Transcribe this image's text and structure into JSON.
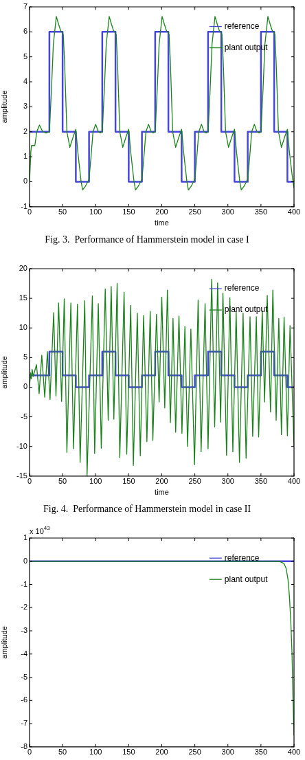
{
  "chart_data": [
    {
      "type": "line",
      "title": "Fig. 3.  Performance of Hammerstein model in case I",
      "xlabel": "time",
      "ylabel": "amplitude",
      "xlim": [
        0,
        400
      ],
      "xticks": [
        0,
        50,
        100,
        150,
        200,
        250,
        300,
        350,
        400
      ],
      "ylim": [
        -1,
        7
      ],
      "yticks": [
        -1,
        0,
        1,
        2,
        3,
        4,
        5,
        6,
        7
      ],
      "legend": "top right",
      "marker": "none",
      "series": [
        {
          "name": "reference",
          "type": "step",
          "color": "#4646dc",
          "x": [
            0,
            30,
            50,
            70,
            90,
            110,
            130,
            150,
            170,
            190,
            210,
            230,
            250,
            270,
            290,
            310,
            330,
            350,
            370,
            390,
            400
          ],
          "values": [
            2,
            6,
            2,
            0,
            2,
            6,
            2,
            0,
            2,
            6,
            2,
            0,
            2,
            6,
            2,
            0,
            2,
            6,
            2,
            0,
            0
          ]
        },
        {
          "name": "plant output",
          "type": "line",
          "color": "#1a821a",
          "x": [
            0,
            2,
            3,
            8,
            11,
            15,
            20,
            25,
            30,
            33,
            36,
            40.5,
            44,
            47,
            49,
            51,
            53,
            56.5,
            61,
            66,
            70,
            73,
            78,
            80.3,
            84,
            88,
            90,
            93,
            96,
            100,
            104,
            107,
            110,
            113,
            116,
            120.5,
            124,
            127,
            129,
            131,
            133,
            136.5,
            141,
            146,
            150,
            153,
            158,
            160.3,
            164,
            168,
            170,
            173,
            176,
            180,
            184,
            187,
            190,
            193,
            196,
            200.5,
            204,
            207,
            209,
            211,
            213,
            216.5,
            221,
            226,
            230,
            233,
            238,
            240.3,
            244,
            248,
            250,
            253,
            256,
            260,
            264,
            267,
            270,
            273,
            276,
            280.5,
            284,
            287,
            289,
            291,
            293,
            296.5,
            301,
            306,
            310,
            313,
            318,
            320.3,
            324,
            328,
            330,
            333,
            336,
            340,
            344,
            347,
            350,
            353,
            356,
            360.5,
            364,
            367,
            369,
            371,
            373,
            376.5,
            381,
            386,
            390,
            393,
            397,
            400
          ],
          "values": [
            0,
            1.2,
            1.45,
            1.45,
            2,
            2.27,
            2,
            1.95,
            2,
            3.6,
            5.5,
            6.62,
            6.3,
            6.05,
            6,
            5.9,
            4.8,
            2,
            1.38,
            1.8,
            2.1,
            1.2,
            0,
            -0.33,
            -0.2,
            0,
            0.1,
            1,
            2,
            2.3,
            2,
            1.95,
            2,
            3.6,
            5.5,
            6.62,
            6.3,
            6.05,
            6,
            5.9,
            4.8,
            2,
            1.38,
            1.8,
            2.1,
            1.2,
            0,
            -0.33,
            -0.2,
            0,
            0.1,
            1,
            2,
            2.3,
            2,
            1.95,
            2,
            3.6,
            5.5,
            6.62,
            6.3,
            6.05,
            6,
            5.9,
            4.8,
            2,
            1.38,
            1.8,
            2.1,
            1.2,
            0,
            -0.33,
            -0.2,
            0,
            0.1,
            1,
            2,
            2.3,
            2,
            1.95,
            2,
            3.6,
            5.5,
            6.62,
            6.3,
            6.05,
            6,
            5.9,
            4.8,
            2,
            1.38,
            1.8,
            2.1,
            1.2,
            0,
            -0.33,
            -0.2,
            0,
            0.1,
            1,
            2,
            2.3,
            2,
            1.95,
            2,
            3.6,
            5.5,
            6.62,
            6.3,
            6.05,
            6,
            5.9,
            4.8,
            2,
            1.38,
            1.8,
            2.1,
            1.2,
            0.3,
            -0.25
          ]
        }
      ]
    },
    {
      "type": "line",
      "title": "Fig. 4.  Performance of Hammerstein model in case II",
      "xlabel": "time",
      "ylabel": "amplitude",
      "xlim": [
        0,
        400
      ],
      "xticks": [
        0,
        50,
        100,
        150,
        200,
        250,
        300,
        350,
        400
      ],
      "ylim": [
        -15,
        20
      ],
      "yticks": [
        -15,
        -10,
        -5,
        0,
        5,
        10,
        15,
        20
      ],
      "legend": "top right",
      "marker": "none",
      "series": [
        {
          "name": "reference",
          "type": "step",
          "color": "#4646dc",
          "x": [
            0,
            30,
            50,
            70,
            90,
            110,
            130,
            150,
            170,
            190,
            210,
            230,
            250,
            270,
            290,
            310,
            330,
            350,
            370,
            390,
            400
          ],
          "values": [
            2,
            6,
            2,
            0,
            2,
            6,
            2,
            0,
            2,
            6,
            2,
            0,
            2,
            6,
            2,
            0,
            2,
            6,
            2,
            0,
            0
          ]
        },
        {
          "name": "plant output",
          "type": "line",
          "color": "#1a821a",
          "x": [
            0,
            1.5,
            2.5,
            4,
            5.5,
            7.5,
            10.5,
            14.5,
            18.5,
            23,
            27,
            31,
            36.5,
            40,
            44,
            48.5,
            52.5,
            56.5,
            62.5,
            66.5,
            72.5,
            76.5,
            83.5,
            87,
            95,
            98.5,
            104,
            108.5,
            114.5,
            119,
            123.5,
            127.5,
            132.5,
            136.5,
            143,
            147,
            153,
            157,
            163,
            167.5,
            172.5,
            177.5,
            182.5,
            186.5,
            192,
            196,
            200,
            204.5,
            208.5,
            213,
            217,
            221,
            226,
            230.5,
            235,
            239,
            244,
            249.5,
            255,
            259.5,
            265.5,
            270,
            275.5,
            280,
            284.5,
            289,
            292.5,
            298,
            303,
            307.5,
            312.5,
            317.5,
            323,
            327.5,
            333.5,
            337.5,
            343,
            346.5,
            352,
            355.5,
            359.5,
            364.5,
            368,
            373,
            377,
            381,
            385,
            390,
            394,
            400
          ],
          "values": [
            0,
            2.4,
            1.4,
            3,
            1.8,
            2.6,
            3.8,
            -1.1,
            5.4,
            -1.7,
            6,
            -2.1,
            12.6,
            -1.5,
            14.2,
            -2.4,
            14.9,
            -11,
            14.2,
            -10.4,
            14,
            -12.7,
            14.6,
            -14.9,
            15.4,
            -11.2,
            14.1,
            -10.3,
            16.6,
            -5.6,
            17,
            -5.4,
            17.5,
            -11.9,
            16,
            -11.3,
            13.8,
            -13.2,
            12.5,
            -11.6,
            12.1,
            -9.2,
            12.8,
            -9,
            12.3,
            -2.5,
            15.2,
            -3.5,
            16.4,
            -6,
            11.6,
            -7.6,
            12,
            -7.8,
            10.2,
            -10,
            9.8,
            -13.1,
            14.7,
            -10.9,
            14.1,
            -10.4,
            18.2,
            -6.7,
            17.6,
            -5.9,
            15.9,
            -11.5,
            15.1,
            -10.9,
            12.7,
            -12.7,
            12.5,
            -12,
            11.9,
            -8.3,
            11.9,
            -8.4,
            12.9,
            -2.5,
            15.5,
            -4.2,
            16.4,
            -5.6,
            11.6,
            -8,
            11.8,
            -8.2,
            10.4,
            -10
          ]
        }
      ]
    },
    {
      "type": "line",
      "ylabel": "amplitude",
      "xlim": [
        0,
        400
      ],
      "xticks": [
        0,
        50,
        100,
        150,
        200,
        250,
        300,
        350,
        400
      ],
      "ylim": [
        -8,
        1
      ],
      "yticks": [
        -8,
        -7,
        -6,
        -5,
        -4,
        -3,
        -2,
        -1,
        0,
        1
      ],
      "legend": "top right",
      "marker": "none",
      "annotations": [
        "x 10$^{43}$"
      ],
      "series": [
        {
          "name": "reference",
          "type": "step",
          "color": "#4646dc",
          "x": [
            0,
            400
          ],
          "values": [
            0,
            0
          ]
        },
        {
          "name": "plant output",
          "type": "line",
          "color": "#1a821a",
          "x": [
            0,
            370,
            379,
            385,
            388,
            391,
            393,
            395,
            397,
            398.5,
            400
          ],
          "values": [
            0,
            0,
            -0.02,
            -0.1,
            -0.3,
            -0.8,
            -1.5,
            -2.5,
            -4,
            -6,
            -7.5
          ]
        }
      ]
    }
  ]
}
